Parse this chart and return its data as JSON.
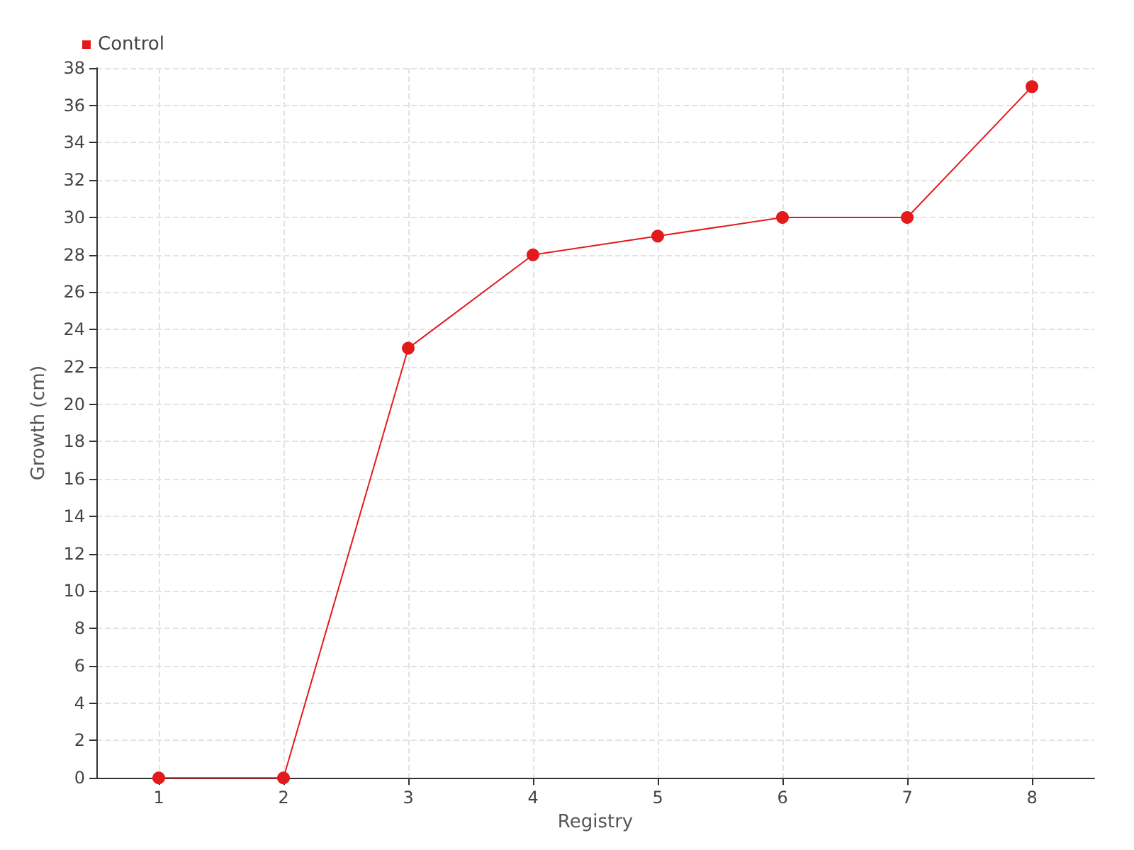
{
  "chart_data": {
    "type": "line",
    "xlabel": "Registry",
    "ylabel": "Growth (cm)",
    "x": [
      1,
      2,
      3,
      4,
      5,
      6,
      7,
      8
    ],
    "series": [
      {
        "name": "Control",
        "color": "#e31a1c",
        "values": [
          0,
          0,
          23,
          28,
          29,
          30,
          30,
          37
        ]
      }
    ],
    "xlim": [
      0.5,
      8.5
    ],
    "xticks": [
      1,
      2,
      3,
      4,
      5,
      6,
      7,
      8
    ],
    "ylim": [
      0,
      38
    ],
    "yticks": [
      0,
      2,
      4,
      6,
      8,
      10,
      12,
      14,
      16,
      18,
      20,
      22,
      24,
      26,
      28,
      30,
      32,
      34,
      36,
      38
    ],
    "grid": true,
    "legend": "top left",
    "marker": "circle",
    "line_style": "solid"
  }
}
